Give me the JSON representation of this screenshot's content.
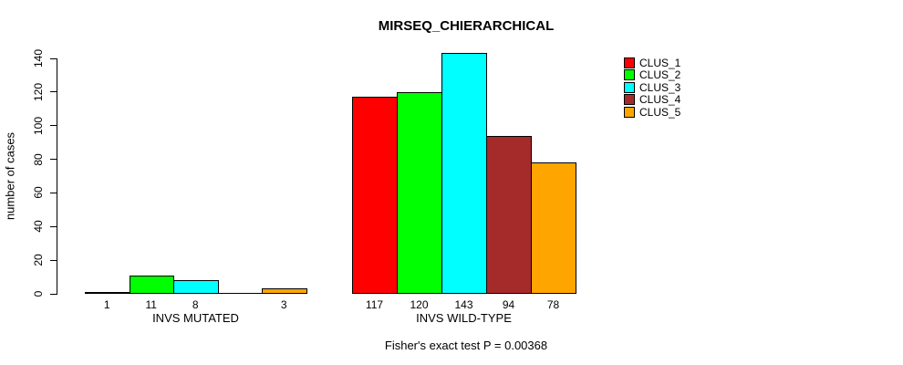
{
  "chart_data": {
    "type": "bar",
    "title": "MIRSEQ_CHIERARCHICAL",
    "subtitle": "Fisher's exact test P = 0.00368",
    "ylabel": "number of cases",
    "ylim": [
      0,
      140
    ],
    "yticks": [
      0,
      20,
      40,
      60,
      80,
      100,
      120,
      140
    ],
    "grid": false,
    "legend_position": "top-right",
    "legend": [
      {
        "label": "CLUS_1",
        "color": "#FF0000"
      },
      {
        "label": "CLUS_2",
        "color": "#00FF00"
      },
      {
        "label": "CLUS_3",
        "color": "#00FFFF"
      },
      {
        "label": "CLUS_4",
        "color": "#A52A2A"
      },
      {
        "label": "CLUS_5",
        "color": "#FFA500"
      }
    ],
    "categories": [
      "INVS MUTATED",
      "INVS WILD-TYPE"
    ],
    "series": [
      {
        "name": "CLUS_1",
        "values": [
          1,
          117
        ]
      },
      {
        "name": "CLUS_2",
        "values": [
          11,
          120
        ]
      },
      {
        "name": "CLUS_3",
        "values": [
          8,
          143
        ]
      },
      {
        "name": "CLUS_4",
        "values": [
          0,
          94
        ]
      },
      {
        "name": "CLUS_5",
        "values": [
          3,
          78
        ]
      }
    ],
    "bar_labels": [
      [
        "1",
        "11",
        "8",
        "",
        "3"
      ],
      [
        "117",
        "120",
        "143",
        "94",
        "78"
      ]
    ]
  }
}
